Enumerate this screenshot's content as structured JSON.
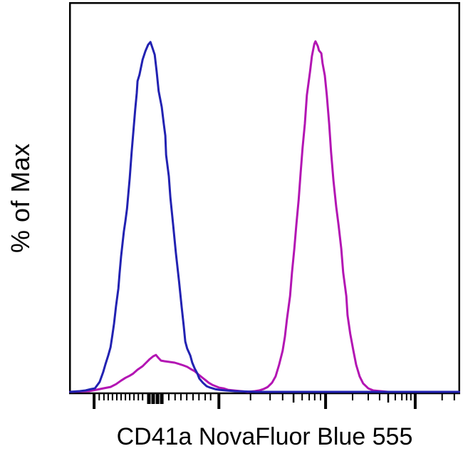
{
  "figure": {
    "y_axis_label": "% of Max",
    "x_axis_label": "CD41a NovaFluor Blue 555"
  },
  "colors": {
    "blue_series": "#2222b2",
    "magenta_series": "#b315b3",
    "axis": "#000000",
    "background": "#ffffff"
  },
  "chart_data": {
    "type": "line",
    "subtype": "flow-cytometry-histogram",
    "title": "",
    "xlabel": "CD41a NovaFluor Blue 555",
    "ylabel": "% of Max",
    "x_scale": "biexponential, tick marks unlabeled",
    "x_range_pct": [
      0,
      100
    ],
    "ylim_pct_of_max": [
      0,
      111
    ],
    "grid": false,
    "legend": "none",
    "series": [
      {
        "name": "magenta-histogram",
        "color": "#b315b3",
        "points_pct": [
          [
            0.3,
            0.4
          ],
          [
            5.1,
            0.6
          ],
          [
            6.9,
            1.0
          ],
          [
            8.7,
            1.4
          ],
          [
            10.6,
            1.8
          ],
          [
            12.0,
            2.6
          ],
          [
            13.3,
            3.6
          ],
          [
            14.4,
            4.4
          ],
          [
            15.5,
            5.0
          ],
          [
            16.4,
            5.6
          ],
          [
            17.5,
            6.7
          ],
          [
            18.8,
            7.7
          ],
          [
            19.7,
            8.7
          ],
          [
            20.6,
            9.7
          ],
          [
            21.5,
            10.5
          ],
          [
            22.2,
            10.9
          ],
          [
            22.8,
            10.1
          ],
          [
            23.5,
            9.3
          ],
          [
            24.4,
            9.1
          ],
          [
            25.7,
            8.9
          ],
          [
            27.0,
            8.7
          ],
          [
            28.2,
            8.3
          ],
          [
            29.3,
            7.9
          ],
          [
            30.2,
            7.5
          ],
          [
            31.1,
            6.9
          ],
          [
            32.1,
            6.3
          ],
          [
            33.0,
            5.4
          ],
          [
            33.9,
            4.6
          ],
          [
            34.8,
            3.8
          ],
          [
            35.7,
            3.0
          ],
          [
            36.6,
            2.4
          ],
          [
            37.5,
            2.0
          ],
          [
            38.4,
            1.6
          ],
          [
            39.5,
            1.4
          ],
          [
            40.6,
            1.0
          ],
          [
            42.1,
            0.8
          ],
          [
            43.9,
            0.6
          ],
          [
            45.7,
            0.4
          ],
          [
            47.5,
            0.6
          ],
          [
            48.6,
            0.8
          ],
          [
            49.7,
            1.2
          ],
          [
            50.8,
            1.8
          ],
          [
            51.9,
            3.0
          ],
          [
            52.8,
            4.8
          ],
          [
            53.7,
            8.1
          ],
          [
            54.6,
            12.1
          ],
          [
            55.2,
            16.1
          ],
          [
            55.7,
            21.0
          ],
          [
            56.5,
            27.6
          ],
          [
            57.0,
            34.3
          ],
          [
            57.6,
            41.1
          ],
          [
            58.1,
            47.8
          ],
          [
            58.7,
            55.0
          ],
          [
            59.2,
            62.5
          ],
          [
            59.7,
            69.8
          ],
          [
            60.3,
            76.6
          ],
          [
            60.8,
            84.7
          ],
          [
            61.6,
            91.3
          ],
          [
            62.1,
            95.8
          ],
          [
            62.7,
            99.2
          ],
          [
            63.0,
            100.0
          ],
          [
            63.6,
            98.6
          ],
          [
            63.9,
            97.4
          ],
          [
            64.5,
            96.6
          ],
          [
            64.8,
            93.8
          ],
          [
            65.4,
            90.3
          ],
          [
            65.9,
            84.7
          ],
          [
            66.5,
            76.6
          ],
          [
            67.0,
            68.5
          ],
          [
            67.6,
            60.5
          ],
          [
            68.3,
            53.0
          ],
          [
            68.9,
            47.8
          ],
          [
            69.6,
            41.1
          ],
          [
            70.1,
            34.3
          ],
          [
            70.9,
            27.6
          ],
          [
            71.2,
            22.2
          ],
          [
            71.9,
            16.9
          ],
          [
            72.7,
            12.1
          ],
          [
            73.4,
            8.1
          ],
          [
            74.3,
            4.8
          ],
          [
            75.2,
            2.8
          ],
          [
            76.5,
            1.4
          ],
          [
            77.8,
            0.8
          ],
          [
            79.6,
            0.6
          ],
          [
            81.6,
            0.4
          ],
          [
            99.7,
            0.4
          ]
        ]
      },
      {
        "name": "blue-histogram",
        "color": "#2222b2",
        "points_pct": [
          [
            0.3,
            0.4
          ],
          [
            2.7,
            0.6
          ],
          [
            4.2,
            0.8
          ],
          [
            5.6,
            1.2
          ],
          [
            6.6,
            1.4
          ],
          [
            7.8,
            3.2
          ],
          [
            8.7,
            6.0
          ],
          [
            9.3,
            8.3
          ],
          [
            10.0,
            10.7
          ],
          [
            10.6,
            13.1
          ],
          [
            11.1,
            16.7
          ],
          [
            11.5,
            19.8
          ],
          [
            12.0,
            24.8
          ],
          [
            12.6,
            29.8
          ],
          [
            12.9,
            33.9
          ],
          [
            13.3,
            38.9
          ],
          [
            13.7,
            42.9
          ],
          [
            14.0,
            46.0
          ],
          [
            14.4,
            49.0
          ],
          [
            14.8,
            52.4
          ],
          [
            15.5,
            61.1
          ],
          [
            16.0,
            68.5
          ],
          [
            16.4,
            73.8
          ],
          [
            16.9,
            80.6
          ],
          [
            17.3,
            85.3
          ],
          [
            17.5,
            88.7
          ],
          [
            18.0,
            90.5
          ],
          [
            18.8,
            94.8
          ],
          [
            19.5,
            97.2
          ],
          [
            20.2,
            99.0
          ],
          [
            20.8,
            99.8
          ],
          [
            21.3,
            98.2
          ],
          [
            21.9,
            96.2
          ],
          [
            22.4,
            91.3
          ],
          [
            22.9,
            85.9
          ],
          [
            23.7,
            81.3
          ],
          [
            24.2,
            76.6
          ],
          [
            24.6,
            73.2
          ],
          [
            24.8,
            67.7
          ],
          [
            25.5,
            61.7
          ],
          [
            25.9,
            55.6
          ],
          [
            26.6,
            48.0
          ],
          [
            27.3,
            39.9
          ],
          [
            28.1,
            31.9
          ],
          [
            28.8,
            24.4
          ],
          [
            29.3,
            19.2
          ],
          [
            29.7,
            14.7
          ],
          [
            30.2,
            12.7
          ],
          [
            31.0,
            10.7
          ],
          [
            31.5,
            8.7
          ],
          [
            32.1,
            7.1
          ],
          [
            32.8,
            5.6
          ],
          [
            33.3,
            4.2
          ],
          [
            34.2,
            3.0
          ],
          [
            35.2,
            2.0
          ],
          [
            36.1,
            1.6
          ],
          [
            37.3,
            1.2
          ],
          [
            38.4,
            1.0
          ],
          [
            40.1,
            0.8
          ],
          [
            42.4,
            0.6
          ],
          [
            47.9,
            0.4
          ],
          [
            99.7,
            0.4
          ]
        ]
      }
    ],
    "x_ticks": {
      "major": [
        6.4,
        38.3,
        65.6,
        88.5
      ],
      "zero_cluster": [
        20.4,
        21.5,
        22.6,
        23.7
      ],
      "medium": [
        57.4,
        81.6
      ],
      "minor": [
        7.7,
        8.9,
        10.0,
        11.1,
        12.2,
        13.3,
        14.4,
        15.5,
        16.6,
        17.7,
        18.8,
        25.5,
        27.1,
        28.6,
        30.1,
        31.7,
        33.2,
        34.8,
        36.2,
        46.4,
        51.4,
        54.6,
        59.6,
        61.4,
        62.8,
        64.3,
        72.5,
        76.5,
        79.4,
        83.4,
        85.1,
        86.3,
        87.4,
        95.4,
        98.5
      ]
    },
    "y_ticks": []
  }
}
